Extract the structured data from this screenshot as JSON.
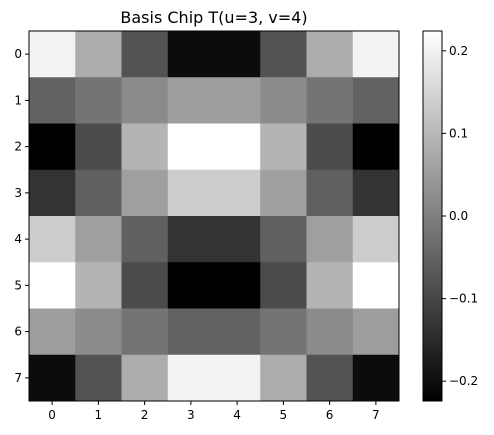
{
  "chart_data": {
    "type": "heatmap",
    "title": "Basis Chip T(u=3, v=4)",
    "x_ticks": [
      "0",
      "1",
      "2",
      "3",
      "4",
      "5",
      "6",
      "7"
    ],
    "y_ticks": [
      "0",
      "1",
      "2",
      "3",
      "4",
      "5",
      "6",
      "7"
    ],
    "colormap": "gray",
    "vmin": -0.224,
    "vmax": 0.224,
    "colorbar_ticks": [
      {
        "value": 0.2,
        "label": "0.2"
      },
      {
        "value": 0.1,
        "label": "0.1"
      },
      {
        "value": 0.0,
        "label": "0.0"
      },
      {
        "value": -0.1,
        "label": "−0.1"
      },
      {
        "value": -0.2,
        "label": "−0.2"
      }
    ],
    "values": [
      [
        0.203,
        0.078,
        -0.078,
        -0.203,
        -0.203,
        -0.078,
        0.078,
        0.203
      ],
      [
        -0.051,
        -0.021,
        0.021,
        0.051,
        0.051,
        0.021,
        -0.021,
        -0.051
      ],
      [
        -0.224,
        -0.093,
        0.093,
        0.224,
        0.224,
        0.093,
        -0.093,
        -0.224
      ],
      [
        -0.135,
        -0.056,
        0.056,
        0.135,
        0.135,
        0.056,
        -0.056,
        -0.135
      ],
      [
        0.135,
        0.056,
        -0.056,
        -0.135,
        -0.135,
        -0.056,
        0.056,
        0.135
      ],
      [
        0.224,
        0.093,
        -0.093,
        -0.224,
        -0.224,
        -0.093,
        0.093,
        0.224
      ],
      [
        0.051,
        0.021,
        -0.021,
        -0.051,
        -0.051,
        -0.021,
        0.021,
        0.051
      ],
      [
        -0.203,
        -0.078,
        0.078,
        0.203,
        0.203,
        0.078,
        -0.078,
        -0.203
      ]
    ]
  }
}
